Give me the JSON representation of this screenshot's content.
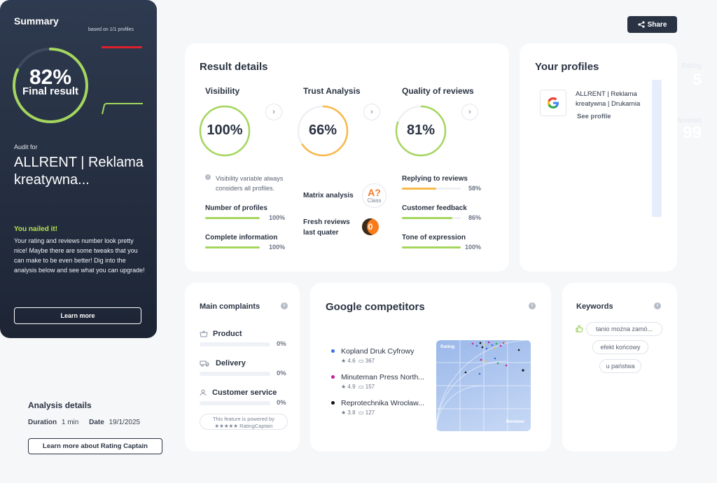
{
  "share_label": "Share",
  "summary": {
    "title": "Summary",
    "based_on": "based on 1/1 profiles",
    "final_pct": "82%",
    "final_value": 0.82,
    "final_label": "Final result",
    "rating_label": "Rating",
    "rating_value": "5",
    "reviews_label": "Reviews",
    "reviews_value": "99",
    "audit_label": "Audit for",
    "audit_name": "ALLRENT | Reklama kreatywna...",
    "nailed_title": "You nailed it!",
    "nailed_text": "Your rating and reviews number look pretty nice! Maybe there are some tweaks that you can make to be even better! Dig into the analysis below and see what you can upgrade!",
    "learn_more": "Learn more"
  },
  "analysis": {
    "title": "Analysis details",
    "duration_label": "Duration",
    "duration_value": "1 min",
    "date_label": "Date",
    "date_value": "19/1/2025",
    "rc_button": "Learn more about Rating Captain"
  },
  "result": {
    "title": "Result details",
    "visibility": {
      "title": "Visibility",
      "pct": "100%",
      "value": 1.0,
      "color": "#a4d65e"
    },
    "trust": {
      "title": "Trust Analysis",
      "pct": "66%",
      "value": 0.66,
      "color": "#f7b94a"
    },
    "quality": {
      "title": "Quality of reviews",
      "pct": "81%",
      "value": 0.81,
      "color": "#a4d65e"
    },
    "visibility_note": "Visibility variable always considers all profiles.",
    "metrics_left": [
      {
        "label": "Number of profiles",
        "val": "100%",
        "value": 1.0,
        "color": "#a4d65e"
      },
      {
        "label": "Complete information",
        "val": "100%",
        "value": 1.0,
        "color": "#a4d65e"
      }
    ],
    "matrix_label": "Matrix analysis",
    "matrix_grade": "A?",
    "matrix_class": "Class",
    "fresh_label_1": "Fresh reviews",
    "fresh_label_2": "last quater",
    "fresh_value": "0",
    "metrics_right": [
      {
        "label": "Replying to reviews",
        "val": "58%",
        "value": 0.58,
        "color": "#f7b94a"
      },
      {
        "label": "Customer feedback",
        "val": "86%",
        "value": 0.86,
        "color": "#a4d65e"
      },
      {
        "label": "Tone of expression",
        "val": "100%",
        "value": 1.0,
        "color": "#a4d65e"
      }
    ]
  },
  "profiles": {
    "title": "Your profiles",
    "name": "ALLRENT | Reklama kreatywna | Drukarnia",
    "see": "See profile",
    "icon": "google-icon"
  },
  "complaints": {
    "title": "Main complaints",
    "items": [
      {
        "label": "Product",
        "val": "0%",
        "icon": "basket-icon"
      },
      {
        "label": "Delivery",
        "val": "0%",
        "icon": "truck-icon"
      },
      {
        "label": "Customer service",
        "val": "0%",
        "icon": "person-icon"
      }
    ],
    "powered_1": "This feature is powered by",
    "powered_2": "★★★★★ RatingCaptain"
  },
  "competitors": {
    "title": "Google competitors",
    "items": [
      {
        "name": "Kopland Druk Cyfrowy",
        "rating": "4.6",
        "reviews": "367",
        "color": "#3b6fe0"
      },
      {
        "name": "Minuteman Press North...",
        "rating": "4.9",
        "reviews": "157",
        "color": "#c21d9a"
      },
      {
        "name": "Reprotechnika Wrocław...",
        "rating": "3.8",
        "reviews": "127",
        "color": "#111111"
      }
    ],
    "plot_y_label": "Rating",
    "plot_x_label": "Reviews"
  },
  "keywords": {
    "title": "Keywords",
    "items": [
      "tanio można zamó...",
      "efekt końcowy",
      "u państwa"
    ]
  }
}
